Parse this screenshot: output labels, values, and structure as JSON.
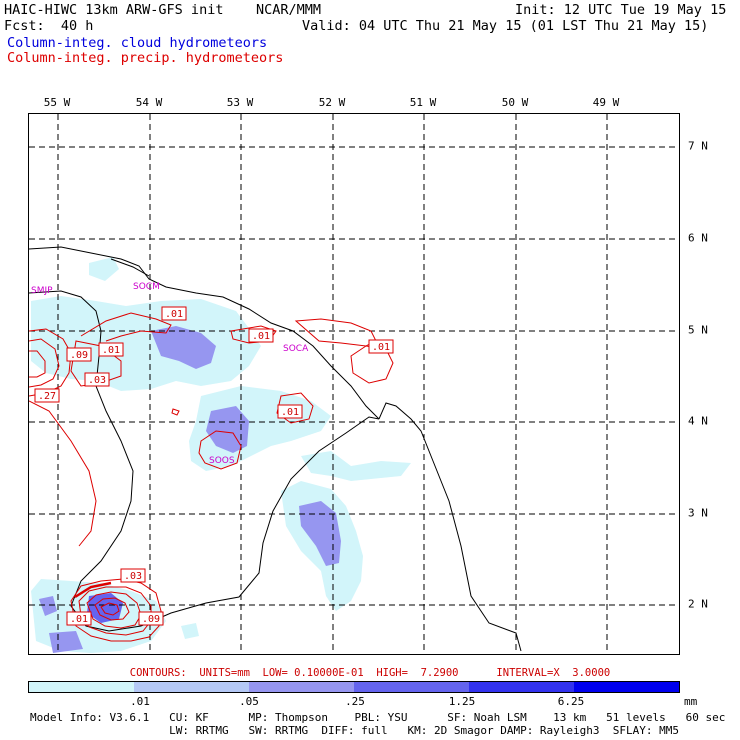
{
  "header": {
    "model_line": "HAIC-HIWC 13km ARW-GFS init    NCAR/MMM",
    "init": "Init: 12 UTC Tue 19 May 15",
    "fcst": "Fcst:  40 h",
    "valid": "Valid: 04 UTC Thu 21 May 15 (01 LST Thu 21 May 15)",
    "field_cloud": "Column-integ. cloud hydrometeors",
    "field_precip": "Column-integ. precip. hydrometeors",
    "colors": {
      "cloud": "#0000dd",
      "precip": "#dd0000"
    }
  },
  "map": {
    "longitudes": [
      "55 W",
      "54 W",
      "53 W",
      "52 W",
      "51 W",
      "50 W",
      "49 W"
    ],
    "latitudes": [
      "7 N",
      "6 N",
      "5 N",
      "4 N",
      "3 N",
      "2 N"
    ],
    "stations": [
      "SMJP",
      "SOCM",
      "SOCA",
      "SOOS"
    ],
    "contour_labels": [
      ".01",
      ".01",
      ".09",
      ".01",
      ".03",
      ".27",
      ".01",
      ".01",
      ".03",
      ".01",
      ".09"
    ]
  },
  "contours_line": "CONTOURS:  UNITS=mm  LOW= 0.10000E-01  HIGH=  7.2900      INTERVAL=X  3.0000",
  "colorbar": {
    "units": "mm",
    "ticks": [
      ".01",
      ".05",
      ".25",
      "1.25",
      "6.25"
    ],
    "colors": [
      "#ffffff",
      "#d2f5fa",
      "#b4c8f5",
      "#9696f0",
      "#6464ee",
      "#3232ee",
      "#0000ee"
    ]
  },
  "model_info": {
    "line1": "Model Info: V3.6.1   CU: KF      MP: Thompson    PBL: YSU      SF: Noah LSM    13 km   51 levels   60 sec",
    "line2": "                     LW: RRTMG   SW: RRTMG  DIFF: full   KM: 2D Smagor DAMP: Rayleigh3  SFLAY: MM5"
  }
}
